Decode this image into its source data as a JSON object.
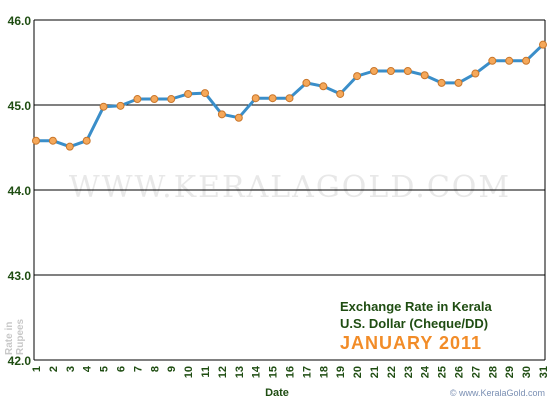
{
  "chart_data": {
    "type": "line",
    "title_lines": [
      "Exchange Rate in Kerala",
      "U.S. Dollar (Cheque/DD)"
    ],
    "period": "JANUARY 2011",
    "xlabel": "Date",
    "ylabel_lines": [
      "Rate in",
      "Rupees"
    ],
    "watermark": "WWW.KERALAGOLD.COM",
    "credit": "© www.KeralaGold.com",
    "ylim": [
      42.0,
      46.0
    ],
    "yticks": [
      "42.0",
      "43.0",
      "44.0",
      "45.0",
      "46.0"
    ],
    "grid": true,
    "x": [
      "1",
      "2",
      "3",
      "4",
      "5",
      "6",
      "7",
      "8",
      "9",
      "10",
      "11",
      "12",
      "13",
      "14",
      "15",
      "16",
      "17",
      "18",
      "19",
      "20",
      "21",
      "22",
      "23",
      "24",
      "25",
      "26",
      "27",
      "28",
      "29",
      "30",
      "31"
    ],
    "series": [
      {
        "values": [
          44.58,
          44.58,
          44.51,
          44.58,
          44.98,
          44.99,
          45.07,
          45.07,
          45.07,
          45.13,
          45.14,
          44.89,
          44.85,
          45.08,
          45.08,
          45.08,
          45.26,
          45.22,
          45.13,
          45.34,
          45.4,
          45.4,
          45.4,
          45.35,
          45.26,
          45.26,
          45.37,
          45.52,
          45.52,
          45.52,
          45.71
        ]
      }
    ],
    "colors": {
      "line": "#3a8ec9",
      "marker_fill": "#f5a85a",
      "marker_stroke": "#c9762a",
      "title_text": "#1f4d12",
      "period_text": "#f28c28",
      "axis_label_text": "#1f4d12",
      "ylabel_text": "#c8c8c8",
      "grid": "#000000",
      "watermark": "#e8e8e8",
      "credit": "#7a8fb3"
    }
  }
}
